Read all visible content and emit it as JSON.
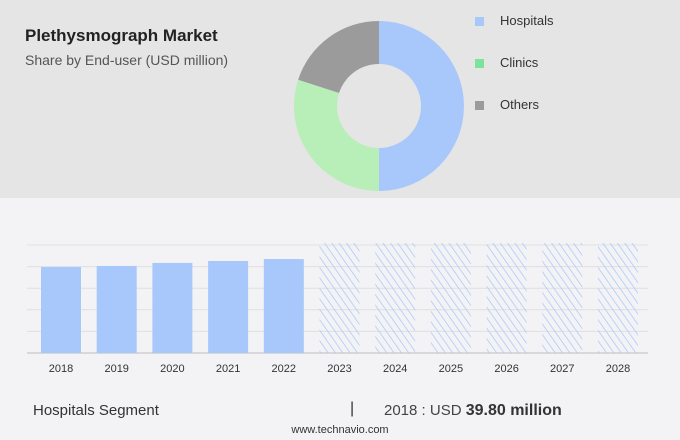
{
  "title": "Plethysmograph Market",
  "subtitle": "Share by End-user (USD million)",
  "chart_data": [
    {
      "type": "pie",
      "donut": true,
      "legend_position": "right",
      "slices": [
        {
          "name": "Hospitals",
          "share": 50,
          "color": "#a8c8fc"
        },
        {
          "name": "Clinics",
          "share": 30,
          "color": "#b8eeb8"
        },
        {
          "name": "Others",
          "share": 20,
          "color": "#9b9b9b"
        }
      ],
      "legend_colors": [
        "#a8c8fc",
        "#7ee39a",
        "#9b9b9b"
      ]
    },
    {
      "type": "bar",
      "categories": [
        "2018",
        "2019",
        "2020",
        "2021",
        "2022",
        "2023",
        "2024",
        "2025",
        "2026",
        "2027",
        "2028"
      ],
      "values": [
        39.8,
        40.3,
        41.7,
        42.6,
        43.5,
        null,
        null,
        null,
        null,
        null,
        null
      ],
      "forecast_from": "2023",
      "ylim": [
        0,
        50
      ],
      "grid": true,
      "color": "#a8c8fc"
    }
  ],
  "footer": {
    "segment": "Hospitals Segment",
    "separator": "|",
    "year_label": "2018 : USD",
    "value": "39.80 million",
    "url": "www.technavio.com"
  }
}
